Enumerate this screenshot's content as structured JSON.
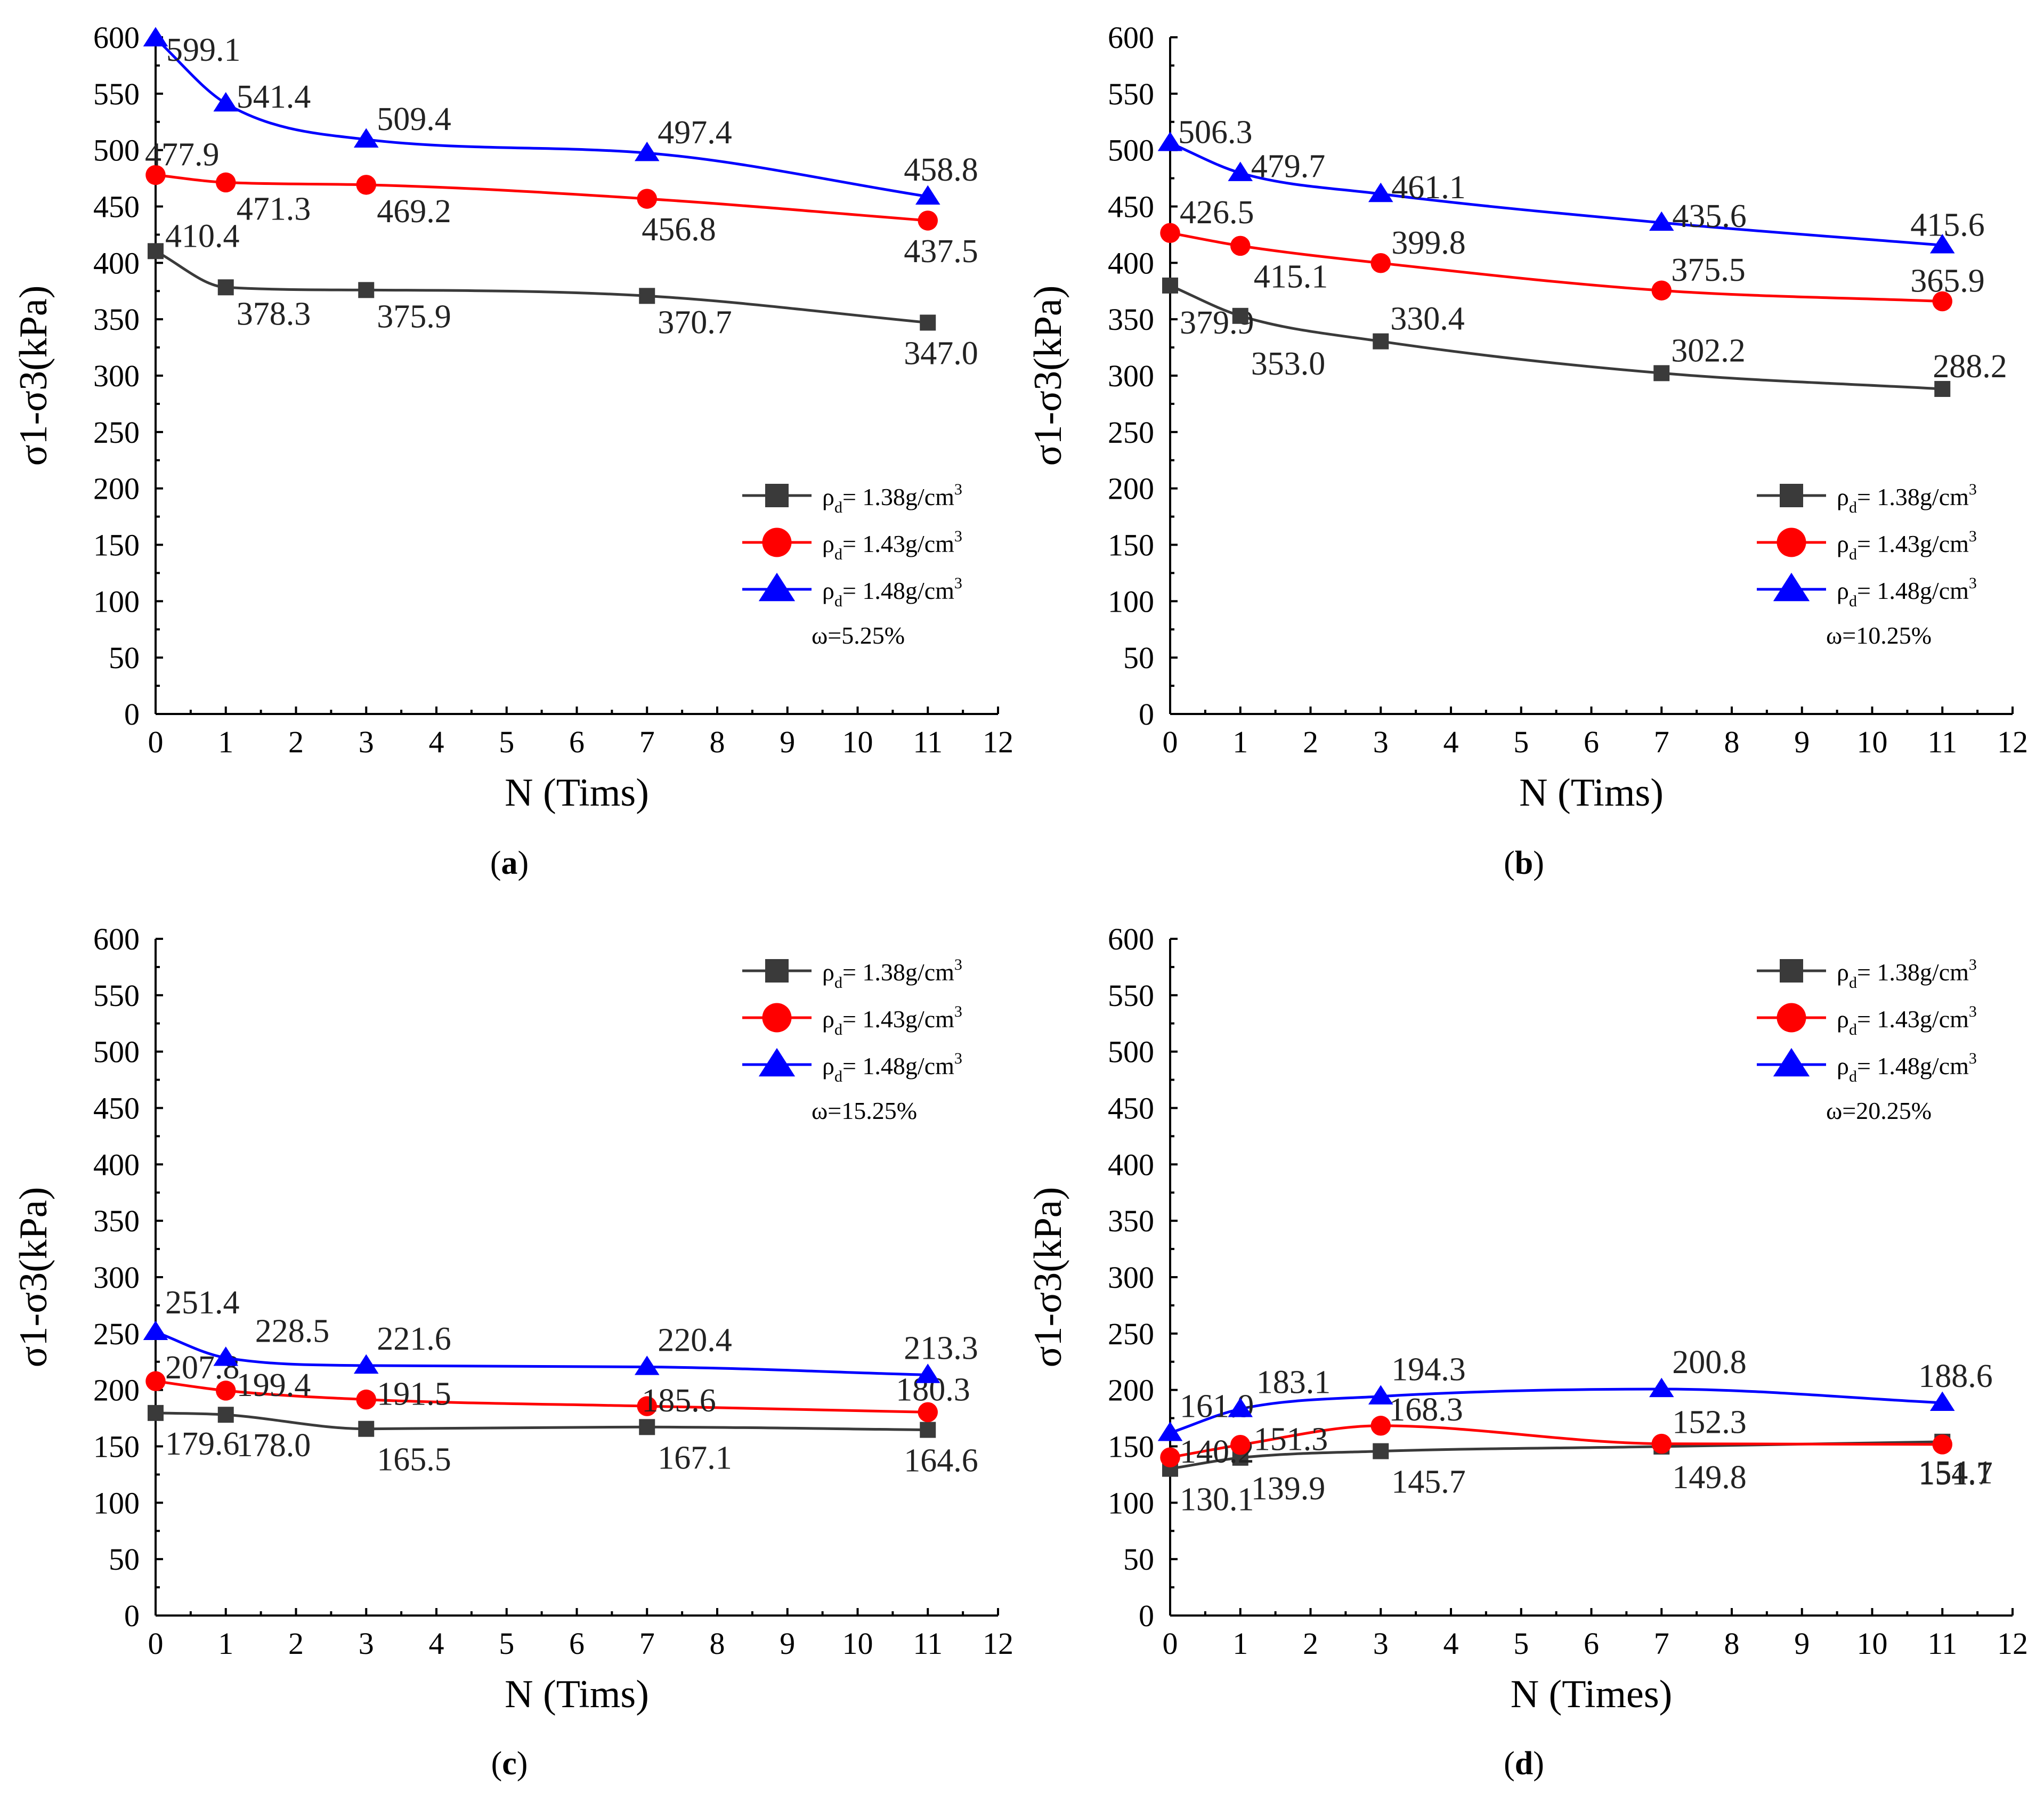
{
  "colors": {
    "s1": "#3a3a3a",
    "s2": "#ff0000",
    "s3": "#0000ff"
  },
  "legend_markers": [
    "square",
    "circle",
    "triangle"
  ],
  "chart_data": [
    {
      "type": "line",
      "panel": "a",
      "panel_label": "(a)",
      "xlabel": "N (Tims)",
      "ylabel": "σ1-σ3(kPa)",
      "xlim": [
        0,
        12
      ],
      "ylim": [
        0,
        600
      ],
      "x_ticks": [
        0,
        1,
        2,
        3,
        4,
        5,
        6,
        7,
        8,
        9,
        10,
        11,
        12
      ],
      "y_ticks": [
        0,
        50,
        100,
        150,
        200,
        250,
        300,
        350,
        400,
        450,
        500,
        550,
        600
      ],
      "legend_position": "right-middle",
      "annotation": "ω=5.25%",
      "x": [
        0,
        1,
        3,
        7,
        11
      ],
      "series": [
        {
          "name": "ρd= 1.38g/cm3",
          "name_main": "ρ",
          "name_sub": "d",
          "name_rest": "= 1.38g/cm",
          "name_sup": "3",
          "marker": "square",
          "values": [
            410.4,
            378.3,
            375.9,
            370.7,
            347.0
          ],
          "labels": [
            "410.4",
            "378.3",
            "375.9",
            "370.7",
            "347.0"
          ]
        },
        {
          "name": "ρd= 1.43g/cm3",
          "name_main": "ρ",
          "name_sub": "d",
          "name_rest": "= 1.43g/cm",
          "name_sup": "3",
          "marker": "circle",
          "values": [
            477.9,
            471.3,
            469.2,
            456.8,
            437.5
          ],
          "labels": [
            "477.9",
            "471.3",
            "469.2",
            "456.8",
            "437.5"
          ]
        },
        {
          "name": "ρd= 1.48g/cm3",
          "name_main": "ρ",
          "name_sub": "d",
          "name_rest": "= 1.48g/cm",
          "name_sup": "3",
          "marker": "triangle",
          "values": [
            599.1,
            541.4,
            509.4,
            497.4,
            458.8
          ],
          "labels": [
            "599.1",
            "541.4",
            "509.4",
            "497.4",
            "458.8"
          ]
        }
      ]
    },
    {
      "type": "line",
      "panel": "b",
      "panel_label": "(b)",
      "xlabel": "N (Tims)",
      "ylabel": "σ1-σ3(kPa)",
      "xlim": [
        0,
        12
      ],
      "ylim": [
        0,
        600
      ],
      "x_ticks": [
        0,
        1,
        2,
        3,
        4,
        5,
        6,
        7,
        8,
        9,
        10,
        11,
        12
      ],
      "y_ticks": [
        0,
        50,
        100,
        150,
        200,
        250,
        300,
        350,
        400,
        450,
        500,
        550,
        600
      ],
      "legend_position": "right-middle",
      "annotation": "ω=10.25%",
      "x": [
        0,
        1,
        3,
        7,
        11
      ],
      "series": [
        {
          "name": "ρd= 1.38g/cm3",
          "name_main": "ρ",
          "name_sub": "d",
          "name_rest": "= 1.38g/cm",
          "name_sup": "3",
          "marker": "square",
          "values": [
            379.9,
            353.0,
            330.4,
            302.2,
            288.2
          ],
          "labels": [
            "379.9",
            "353.0",
            "330.4",
            "302.2",
            "288.2"
          ]
        },
        {
          "name": "ρd= 1.43g/cm3",
          "name_main": "ρ",
          "name_sub": "d",
          "name_rest": "= 1.43g/cm",
          "name_sup": "3",
          "marker": "circle",
          "values": [
            426.5,
            415.1,
            399.8,
            375.5,
            365.9
          ],
          "labels": [
            "426.5",
            "415.1",
            "399.8",
            "375.5",
            "365.9"
          ]
        },
        {
          "name": "ρd= 1.48g/cm3",
          "name_main": "ρ",
          "name_sub": "d",
          "name_rest": "= 1.48g/cm",
          "name_sup": "3",
          "marker": "triangle",
          "values": [
            506.3,
            479.7,
            461.1,
            435.6,
            415.6
          ],
          "labels": [
            "506.3",
            "479.7",
            "461.1",
            "435.6",
            "415.6"
          ]
        }
      ]
    },
    {
      "type": "line",
      "panel": "c",
      "panel_label": "(c)",
      "xlabel": "N (Tims)",
      "ylabel": "σ1-σ3(kPa)",
      "xlim": [
        0,
        12
      ],
      "ylim": [
        0,
        600
      ],
      "x_ticks": [
        0,
        1,
        2,
        3,
        4,
        5,
        6,
        7,
        8,
        9,
        10,
        11,
        12
      ],
      "y_ticks": [
        0,
        50,
        100,
        150,
        200,
        250,
        300,
        350,
        400,
        450,
        500,
        550,
        600
      ],
      "legend_position": "top-right",
      "annotation": "ω=15.25%",
      "x": [
        0,
        1,
        3,
        7,
        11
      ],
      "series": [
        {
          "name": "ρd= 1.38g/cm3",
          "name_main": "ρ",
          "name_sub": "d",
          "name_rest": "= 1.38g/cm",
          "name_sup": "3",
          "marker": "square",
          "values": [
            179.6,
            178.0,
            165.5,
            167.1,
            164.6
          ],
          "labels": [
            "179.6",
            "178.0",
            "165.5",
            "167.1",
            "164.6"
          ]
        },
        {
          "name": "ρd= 1.43g/cm3",
          "name_main": "ρ",
          "name_sub": "d",
          "name_rest": "= 1.43g/cm",
          "name_sup": "3",
          "marker": "circle",
          "values": [
            207.8,
            199.4,
            191.5,
            185.6,
            180.3
          ],
          "labels": [
            "207.8",
            "199.4",
            "191.5",
            "185.6",
            "180.3"
          ]
        },
        {
          "name": "ρd= 1.48g/cm3",
          "name_main": "ρ",
          "name_sub": "d",
          "name_rest": "= 1.48g/cm",
          "name_sup": "3",
          "marker": "triangle",
          "values": [
            251.4,
            228.5,
            221.6,
            220.4,
            213.3
          ],
          "labels": [
            "251.4",
            "228.5",
            "221.6",
            "220.4",
            "213.3"
          ]
        }
      ]
    },
    {
      "type": "line",
      "panel": "d",
      "panel_label": "(d)",
      "xlabel": "N (Times)",
      "ylabel": "σ1-σ3(kPa)",
      "xlim": [
        0,
        12
      ],
      "ylim": [
        0,
        600
      ],
      "x_ticks": [
        0,
        1,
        2,
        3,
        4,
        5,
        6,
        7,
        8,
        9,
        10,
        11,
        12
      ],
      "y_ticks": [
        0,
        50,
        100,
        150,
        200,
        250,
        300,
        350,
        400,
        450,
        500,
        550,
        600
      ],
      "legend_position": "top-right",
      "annotation": "ω=20.25%",
      "x": [
        0,
        1,
        3,
        7,
        11
      ],
      "series": [
        {
          "name": "ρd= 1.38g/cm3",
          "name_main": "ρ",
          "name_sub": "d",
          "name_rest": "= 1.38g/cm",
          "name_sup": "3",
          "marker": "square",
          "values": [
            130.1,
            139.9,
            145.7,
            149.8,
            154.1
          ],
          "labels": [
            "130.1",
            "139.9",
            "145.7",
            "149.8",
            "154.1"
          ]
        },
        {
          "name": "ρd= 1.43g/cm3",
          "name_main": "ρ",
          "name_sub": "d",
          "name_rest": "= 1.43g/cm",
          "name_sup": "3",
          "marker": "circle",
          "values": [
            140.2,
            151.3,
            168.3,
            152.3,
            151.7
          ],
          "labels": [
            "140.2",
            "151.3",
            "168.3",
            "152.3",
            "151.7"
          ]
        },
        {
          "name": "ρd= 1.48g/cm3",
          "name_main": "ρ",
          "name_sub": "d",
          "name_rest": "= 1.48g/cm",
          "name_sup": "3",
          "marker": "triangle",
          "values": [
            161.9,
            183.1,
            194.3,
            200.8,
            188.6
          ],
          "labels": [
            "161.9",
            "183.1",
            "194.3",
            "200.8",
            "188.6"
          ]
        }
      ]
    }
  ]
}
